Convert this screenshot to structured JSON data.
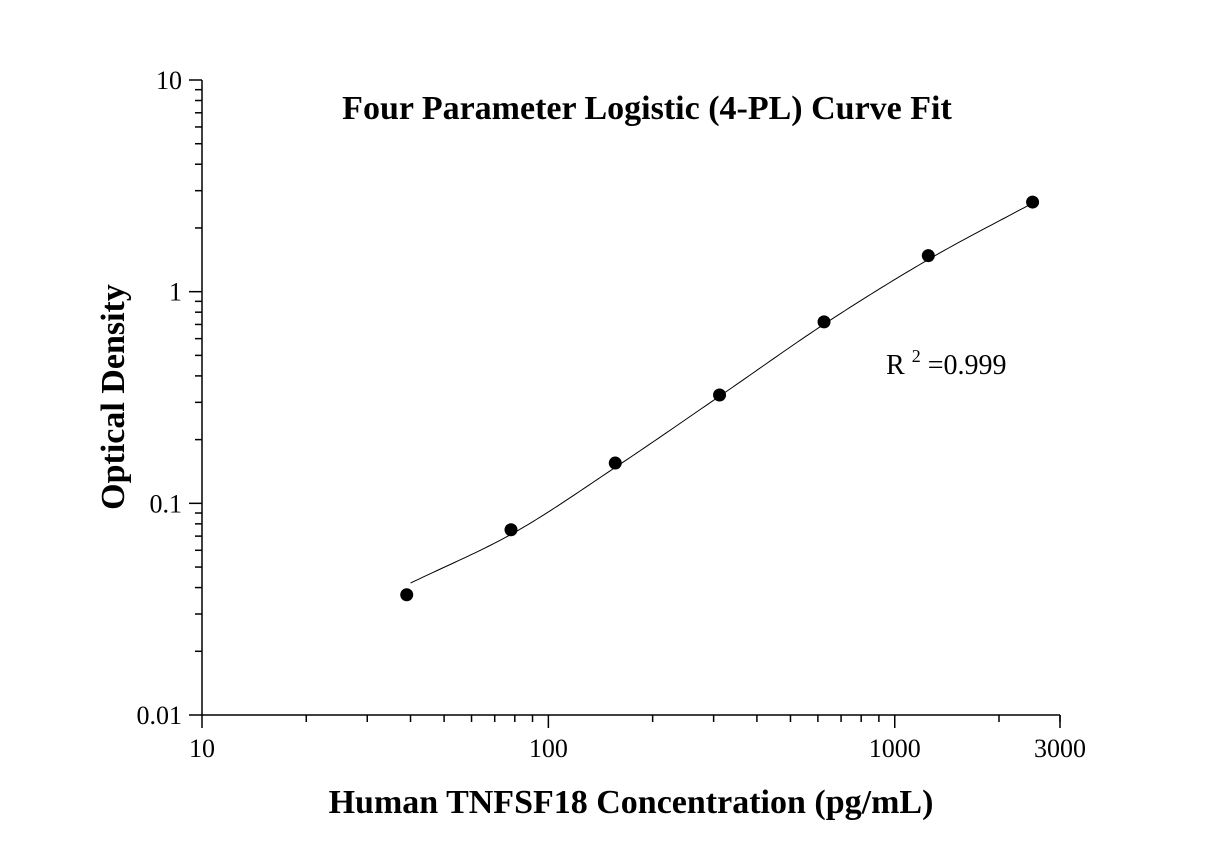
{
  "chart_data": {
    "type": "scatter",
    "title": "Four Parameter Logistic (4-PL) Curve Fit",
    "xlabel": "Human TNFSF18 Concentration (pg/mL)",
    "ylabel": "Optical Density",
    "x_scale": "log",
    "y_scale": "log",
    "xlim": [
      10,
      3000
    ],
    "ylim": [
      0.01,
      10
    ],
    "x_tick_labels": [
      {
        "value": 10,
        "label": "10"
      },
      {
        "value": 100,
        "label": "100"
      },
      {
        "value": 1000,
        "label": "1000"
      },
      {
        "value": 3000,
        "label": "3000"
      }
    ],
    "y_tick_labels": [
      {
        "value": 0.01,
        "label": "0.01"
      },
      {
        "value": 0.1,
        "label": "0.1"
      },
      {
        "value": 1,
        "label": "1"
      },
      {
        "value": 10,
        "label": "10"
      }
    ],
    "grid": false,
    "annotation": {
      "base": "R",
      "sup": "2",
      "rest": "=0.999"
    },
    "series": [
      {
        "x": [
          39,
          78,
          156,
          312,
          625,
          1250,
          2500
        ],
        "y": [
          0.037,
          0.075,
          0.155,
          0.325,
          0.72,
          1.48,
          2.65
        ],
        "marker": "circle",
        "color": "#000000"
      }
    ],
    "curve_fit": {
      "model": "4-PL",
      "x": [
        40,
        80,
        160,
        320,
        640,
        1280,
        2500
      ],
      "y": [
        0.042,
        0.073,
        0.152,
        0.33,
        0.72,
        1.45,
        2.62
      ],
      "color": "#000000"
    }
  }
}
